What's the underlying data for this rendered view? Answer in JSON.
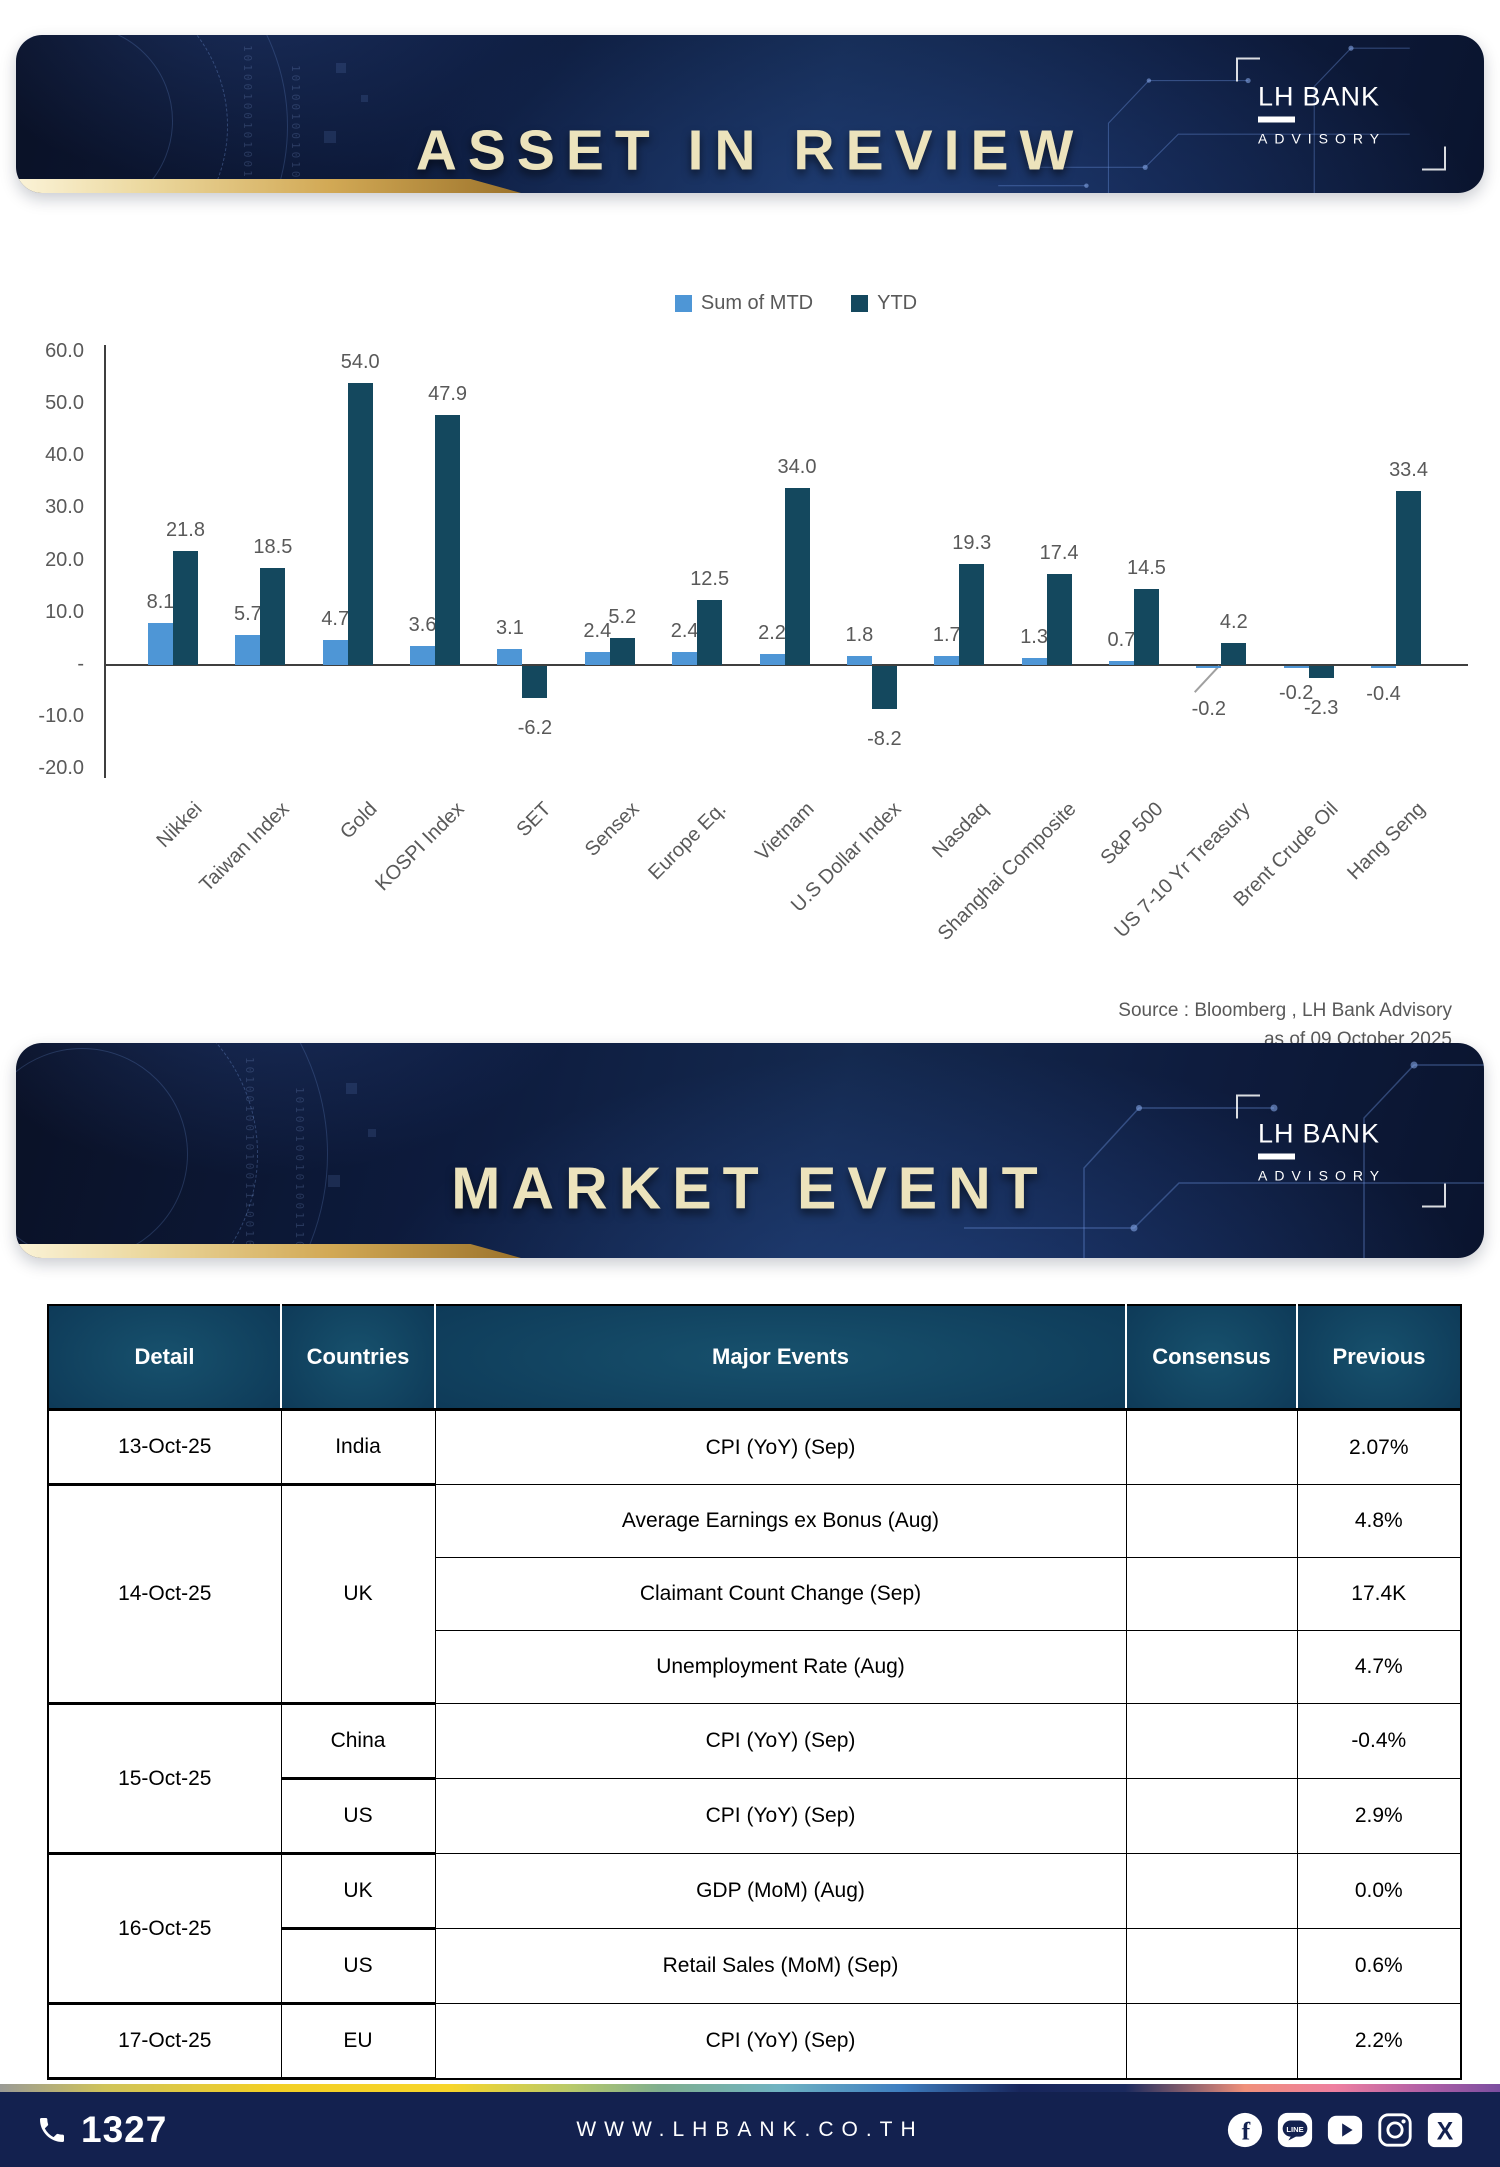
{
  "brand": {
    "lh": "LH",
    "bank": "BANK",
    "sub": "ADVISORY"
  },
  "section_asset": {
    "title": "ASSET IN REVIEW",
    "source_line1": "Source : Bloomberg , LH Bank Advisory",
    "source_line2": "as of 09 October 2025"
  },
  "section_market": {
    "title": "MARKET EVENT"
  },
  "decoration": {
    "binary": "10100100101001110010010"
  },
  "chart_data": {
    "type": "bar",
    "title": "",
    "legend_position": "top",
    "grid": false,
    "categories": [
      "Nikkei",
      "Taiwan Index",
      "Gold",
      "KOSPI Index",
      "SET",
      "Sensex",
      "Europe Eq.",
      "Vietnam",
      "U.S Dollar Index",
      "Nasdaq",
      "Shanghai Composite",
      "S&P 500",
      "US 7-10 Yr Treasury",
      "Brent Crude Oil",
      "Hang Seng"
    ],
    "series": [
      {
        "name": "Sum of MTD",
        "color": "#4E96D6",
        "values": [
          8.1,
          5.7,
          4.7,
          3.6,
          3.1,
          2.4,
          2.4,
          2.2,
          1.8,
          1.7,
          1.3,
          0.7,
          -0.2,
          -0.2,
          -0.4
        ]
      },
      {
        "name": "YTD",
        "color": "#14485E",
        "values": [
          21.8,
          18.5,
          54.0,
          47.9,
          -6.2,
          5.2,
          12.5,
          34.0,
          -8.2,
          19.3,
          17.4,
          14.5,
          4.2,
          -2.3,
          33.4
        ]
      }
    ],
    "ylim": [
      -20,
      60
    ],
    "ytick_values": [
      60,
      50,
      40,
      30,
      20,
      10,
      0,
      -10,
      -20
    ],
    "ytick_labels": [
      "60.0",
      "50.0",
      "40.0",
      "30.0",
      "20.0",
      "10.0",
      "-",
      "-10.0",
      "-20.0"
    ],
    "value_label_color": "#595959",
    "callout_category": "US 7-10 Yr Treasury"
  },
  "table": {
    "headers": [
      "Detail",
      "Countries",
      "Major Events",
      "Consensus",
      "Previous"
    ],
    "groups": [
      {
        "date": "13-Oct-25",
        "countries": [
          {
            "name": "India",
            "events": [
              {
                "event": "CPI (YoY) (Sep)",
                "consensus": "",
                "previous": "2.07%"
              }
            ]
          }
        ]
      },
      {
        "date": "14-Oct-25",
        "countries": [
          {
            "name": "UK",
            "events": [
              {
                "event": "Average Earnings ex Bonus (Aug)",
                "consensus": "",
                "previous": "4.8%"
              },
              {
                "event": "Claimant Count Change (Sep)",
                "consensus": "",
                "previous": "17.4K"
              },
              {
                "event": "Unemployment Rate (Aug)",
                "consensus": "",
                "previous": "4.7%"
              }
            ]
          }
        ]
      },
      {
        "date": "15-Oct-25",
        "countries": [
          {
            "name": "China",
            "events": [
              {
                "event": "CPI (YoY) (Sep)",
                "consensus": "",
                "previous": "-0.4%"
              }
            ]
          },
          {
            "name": "US",
            "events": [
              {
                "event": "CPI (YoY) (Sep)",
                "consensus": "",
                "previous": "2.9%"
              }
            ]
          }
        ]
      },
      {
        "date": "16-Oct-25",
        "countries": [
          {
            "name": "UK",
            "events": [
              {
                "event": "GDP (MoM) (Aug)",
                "consensus": "",
                "previous": "0.0%"
              }
            ]
          },
          {
            "name": "US",
            "events": [
              {
                "event": "Retail Sales (MoM) (Sep)",
                "consensus": "",
                "previous": "0.6%"
              }
            ]
          }
        ]
      },
      {
        "date": "17-Oct-25",
        "countries": [
          {
            "name": "EU",
            "events": [
              {
                "event": "CPI (YoY) (Sep)",
                "consensus": "",
                "previous": "2.2%"
              }
            ]
          }
        ]
      }
    ]
  },
  "footer": {
    "phone": "1327",
    "website": "WWW.LHBANK.CO.TH",
    "social": [
      "facebook",
      "line",
      "youtube",
      "instagram",
      "x"
    ]
  }
}
